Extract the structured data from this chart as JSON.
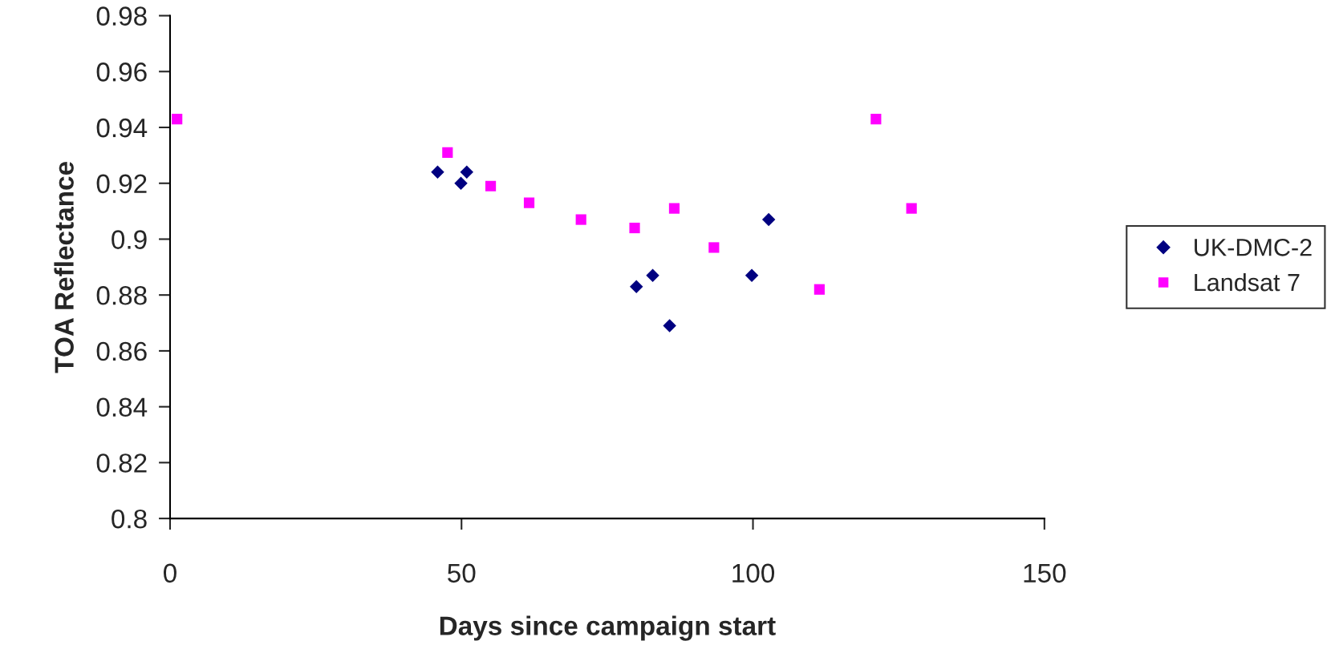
{
  "chart_data": {
    "type": "scatter",
    "xlabel": "Days since campaign start",
    "ylabel": "TOA Reflectance",
    "series": [
      {
        "name": "UK-DMC-2",
        "color": "#000080",
        "marker": "diamond",
        "x": [
          45.9,
          49.9,
          50.9,
          80.0,
          82.8,
          85.7,
          99.8,
          102.7
        ],
        "values": [
          0.924,
          0.92,
          0.924,
          0.883,
          0.887,
          0.869,
          0.887,
          0.907
        ]
      },
      {
        "name": "Landsat 7",
        "color": "#ff00ff",
        "marker": "square",
        "x": [
          1.2,
          47.6,
          55.0,
          61.6,
          70.5,
          79.7,
          86.5,
          93.3,
          111.4,
          121.1,
          127.2
        ],
        "values": [
          0.943,
          0.931,
          0.919,
          0.913,
          0.907,
          0.904,
          0.911,
          0.897,
          0.882,
          0.943,
          0.911
        ]
      }
    ],
    "xlim": [
      0,
      150
    ],
    "xticks": [
      0,
      50,
      100,
      150
    ],
    "ylim": [
      0.8,
      0.98
    ],
    "yticks": [
      0.8,
      0.82,
      0.84,
      0.86,
      0.88,
      0.9,
      0.92,
      0.94,
      0.96,
      0.98
    ],
    "grid": false,
    "legend": "right"
  }
}
